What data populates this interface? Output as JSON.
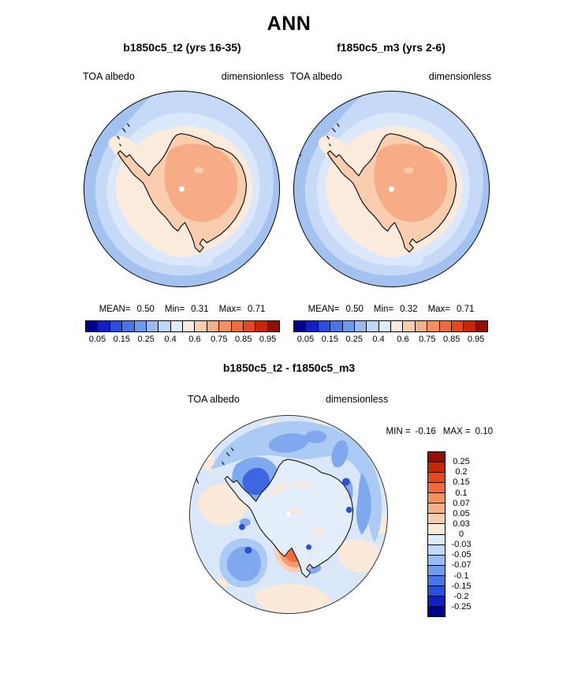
{
  "page_title": "ANN",
  "panels": {
    "left": {
      "title": "b1850c5_t2 (yrs 16-35)",
      "var_label": "TOA albedo",
      "units_label": "dimensionless",
      "stats": {
        "mean_label": "MEAN=",
        "mean": "0.50",
        "min_label": "Min=",
        "min": "0.31",
        "max_label": "Max=",
        "max": "0.71"
      }
    },
    "right": {
      "title": "f1850c5_m3 (yrs 2-6)",
      "var_label": "TOA albedo",
      "units_label": "dimensionless",
      "stats": {
        "mean_label": "MEAN=",
        "mean": "0.50",
        "min_label": "Min=",
        "min": "0.32",
        "max_label": "Max=",
        "max": "0.71"
      }
    },
    "diff": {
      "title": "b1850c5_t2 - f1850c5_m3",
      "var_label": "TOA albedo",
      "units_label": "dimensionless",
      "stats": {
        "min_label": "MIN =",
        "min": "-0.16",
        "max_label": "MAX =",
        "max": "0.10"
      }
    }
  },
  "colorbar": {
    "palette_blue_to_red": [
      "#00008B",
      "#1021C4",
      "#2A4FDE",
      "#4676E9",
      "#6D9BEF",
      "#97BCF4",
      "#BDD8F8",
      "#DFEBFB",
      "#FBEADA",
      "#FACDAD",
      "#F7AF87",
      "#F49060",
      "#EF6B3C",
      "#E5481F",
      "#C72708",
      "#940F04"
    ],
    "top_ticks": [
      "0.05",
      "0.15",
      "0.25",
      "0.4",
      "0.6",
      "0.75",
      "0.85",
      "0.95"
    ],
    "diff_ticks": [
      "0.25",
      "0.2",
      "0.15",
      "0.1",
      "0.07",
      "0.05",
      "0.03",
      "0",
      "-0.03",
      "-0.05",
      "-0.07",
      "-0.1",
      "-0.15",
      "-0.2",
      "-0.25"
    ]
  },
  "chart_data": [
    {
      "type": "heatmap",
      "title": "b1850c5_t2 (yrs 16-35)",
      "variable": "TOA albedo",
      "units": "dimensionless",
      "projection": "south polar stereographic map of Antarctica",
      "stats": {
        "mean": 0.5,
        "min": 0.31,
        "max": 0.71
      },
      "contour_levels": [
        0.05,
        0.1,
        0.15,
        0.2,
        0.25,
        0.3,
        0.4,
        0.5,
        0.6,
        0.7,
        0.75,
        0.8,
        0.85,
        0.9,
        0.95
      ],
      "labeled_levels": [
        0.05,
        0.15,
        0.25,
        0.4,
        0.6,
        0.75,
        0.85,
        0.95
      ],
      "legend_position": "below",
      "summary": "Ocean around Antarctica has albedo ~0.1-0.3 (blues); sea-ice ring and coast ~0.4-0.6 (pale); continental interior ~0.6-0.7 (orange shades)."
    },
    {
      "type": "heatmap",
      "title": "f1850c5_m3 (yrs 2-6)",
      "variable": "TOA albedo",
      "units": "dimensionless",
      "projection": "south polar stereographic map of Antarctica",
      "stats": {
        "mean": 0.5,
        "min": 0.32,
        "max": 0.71
      },
      "contour_levels": [
        0.05,
        0.1,
        0.15,
        0.2,
        0.25,
        0.3,
        0.4,
        0.5,
        0.6,
        0.7,
        0.75,
        0.8,
        0.85,
        0.9,
        0.95
      ],
      "labeled_levels": [
        0.05,
        0.15,
        0.25,
        0.4,
        0.6,
        0.75,
        0.85,
        0.95
      ],
      "legend_position": "below",
      "summary": "Nearly identical pattern to left panel; slightly broader high-albedo interior."
    },
    {
      "type": "heatmap",
      "title": "b1850c5_t2 - f1850c5_m3",
      "variable": "TOA albedo",
      "units": "dimensionless",
      "projection": "south polar stereographic map of Antarctica",
      "stats": {
        "min": -0.16,
        "max": 0.1
      },
      "contour_levels": [
        -0.25,
        -0.2,
        -0.15,
        -0.1,
        -0.07,
        -0.05,
        -0.03,
        0,
        0.03,
        0.05,
        0.07,
        0.1,
        0.15,
        0.2,
        0.25
      ],
      "legend_position": "right",
      "summary": "Differences mostly -0.03 to +0.03; negative (blue) patches up to ~-0.1 along the coast and offshore; one positive (orange) patch ~+0.1 near the Ross Sea coast."
    }
  ]
}
